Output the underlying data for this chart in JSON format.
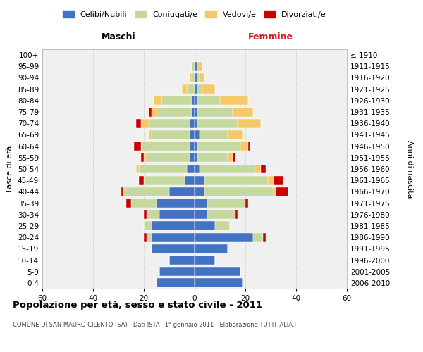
{
  "age_groups": [
    "0-4",
    "5-9",
    "10-14",
    "15-19",
    "20-24",
    "25-29",
    "30-34",
    "35-39",
    "40-44",
    "45-49",
    "50-54",
    "55-59",
    "60-64",
    "65-69",
    "70-74",
    "75-79",
    "80-84",
    "85-89",
    "90-94",
    "95-99",
    "100+"
  ],
  "birth_years": [
    "2006-2010",
    "2001-2005",
    "1996-2000",
    "1991-1995",
    "1986-1990",
    "1981-1985",
    "1976-1980",
    "1971-1975",
    "1966-1970",
    "1961-1965",
    "1956-1960",
    "1951-1955",
    "1946-1950",
    "1941-1945",
    "1936-1940",
    "1931-1935",
    "1926-1930",
    "1921-1925",
    "1916-1920",
    "1911-1915",
    "≤ 1910"
  ],
  "male": {
    "celibe": [
      15,
      14,
      10,
      17,
      17,
      17,
      14,
      15,
      10,
      4,
      3,
      2,
      2,
      2,
      2,
      1,
      1,
      0,
      0,
      0,
      0
    ],
    "coniugato": [
      0,
      0,
      0,
      0,
      2,
      3,
      5,
      10,
      18,
      16,
      19,
      17,
      19,
      15,
      16,
      14,
      12,
      3,
      1,
      1,
      0
    ],
    "vedovo": [
      0,
      0,
      0,
      0,
      0,
      0,
      0,
      0,
      0,
      0,
      1,
      1,
      0,
      1,
      3,
      2,
      3,
      2,
      1,
      0,
      0
    ],
    "divorziato": [
      0,
      0,
      0,
      0,
      1,
      0,
      1,
      2,
      1,
      2,
      0,
      1,
      3,
      0,
      2,
      1,
      0,
      0,
      0,
      0,
      0
    ]
  },
  "female": {
    "nubile": [
      19,
      18,
      8,
      13,
      23,
      8,
      5,
      5,
      4,
      4,
      2,
      1,
      1,
      2,
      1,
      1,
      1,
      1,
      1,
      1,
      0
    ],
    "coniugata": [
      0,
      0,
      0,
      0,
      4,
      6,
      11,
      15,
      27,
      25,
      22,
      12,
      17,
      11,
      16,
      14,
      9,
      2,
      1,
      0,
      0
    ],
    "vedova": [
      0,
      0,
      0,
      0,
      0,
      0,
      0,
      0,
      1,
      2,
      2,
      2,
      3,
      6,
      9,
      8,
      11,
      5,
      2,
      2,
      0
    ],
    "divorziata": [
      0,
      0,
      0,
      0,
      1,
      0,
      1,
      1,
      5,
      4,
      2,
      1,
      1,
      0,
      0,
      0,
      0,
      0,
      0,
      0,
      0
    ]
  },
  "colors": {
    "celibe": "#4472c4",
    "coniugato": "#c5d89d",
    "vedovo": "#f5c96a",
    "divorziato": "#cc0000"
  },
  "title": "Popolazione per età, sesso e stato civile - 2011",
  "subtitle": "COMUNE DI SAN MAURO CILENTO (SA) - Dati ISTAT 1° gennaio 2011 - Elaborazione TUTTITALIA.IT",
  "xlabel_left": "Maschi",
  "xlabel_right": "Femmine",
  "ylabel_left": "Fasce di età",
  "ylabel_right": "Anni di nascita",
  "xlim": 60,
  "legend_labels": [
    "Celibi/Nubili",
    "Coniugati/e",
    "Vedovi/e",
    "Divorziati/e"
  ],
  "bg_color": "#ffffff",
  "plot_bg_color": "#f0f0f0",
  "grid_color": "#cccccc"
}
